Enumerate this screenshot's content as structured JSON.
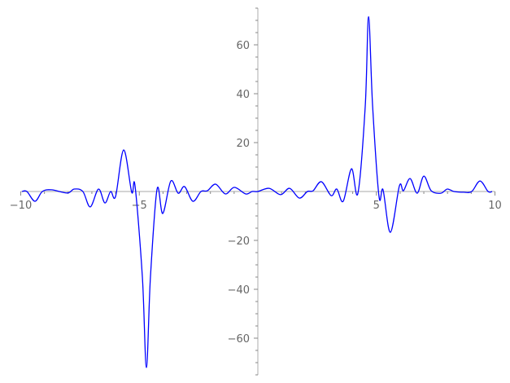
{
  "chart_data": {
    "type": "line",
    "title": "",
    "xlabel": "",
    "ylabel": "",
    "xlim": [
      -10,
      10
    ],
    "ylim": [
      -75,
      75
    ],
    "grid": false,
    "line_color": "#0000ff",
    "axis_color": "#bbbbbb",
    "x_ticks": [
      -10,
      -5,
      5,
      10
    ],
    "x_tick_labels": [
      "−10",
      "−5",
      "5",
      "10"
    ],
    "y_ticks": [
      -60,
      -40,
      -20,
      20,
      40,
      60
    ],
    "y_tick_labels": [
      "−60",
      "−40",
      "−20",
      "20",
      "40",
      "60"
    ],
    "series": [
      {
        "x": [
          -9.95,
          -9.74,
          -9.4,
          -9.09,
          -8.71,
          -8.03,
          -7.75,
          -7.38,
          -7.07,
          -6.72,
          -6.45,
          -6.21,
          -6.0,
          -5.66,
          -5.32,
          -5.18,
          -4.87,
          -4.7,
          -4.53,
          -4.25,
          -4.01,
          -3.67,
          -3.36,
          -3.09,
          -2.74,
          -2.4,
          -2.13,
          -1.78,
          -1.37,
          -0.99,
          -0.51,
          -0.24,
          0,
          0.48,
          0.96,
          1.34,
          1.75,
          2.09,
          2.33,
          2.68,
          3.09,
          3.33,
          3.6,
          3.95,
          4.22,
          4.53,
          4.67,
          4.84,
          5.11,
          5.28,
          5.59,
          5.97,
          6.14,
          6.42,
          6.72,
          7.0,
          7.31,
          7.72,
          7.99,
          8.27,
          8.68,
          9.02,
          9.37,
          9.71,
          9.88
        ],
        "y": [
          0,
          0,
          -4,
          0,
          0.7,
          -0.6,
          1,
          0,
          -6.3,
          1,
          -4.7,
          0,
          -2,
          17,
          -0.3,
          2.3,
          -35,
          -72,
          -35,
          1,
          -9,
          4.3,
          -0.7,
          2,
          -4,
          0,
          0.3,
          3,
          -1,
          1.7,
          -1,
          0,
          0,
          1.3,
          -1.3,
          1.3,
          -2.7,
          0,
          0.3,
          4,
          -1.7,
          1,
          -4,
          9.3,
          -0.7,
          35,
          71.5,
          35,
          -2,
          0.7,
          -16.7,
          2.3,
          0.3,
          5.3,
          -0.7,
          6.3,
          0.3,
          -0.7,
          1,
          0,
          -0.3,
          0,
          4.3,
          0,
          0
        ]
      }
    ]
  }
}
